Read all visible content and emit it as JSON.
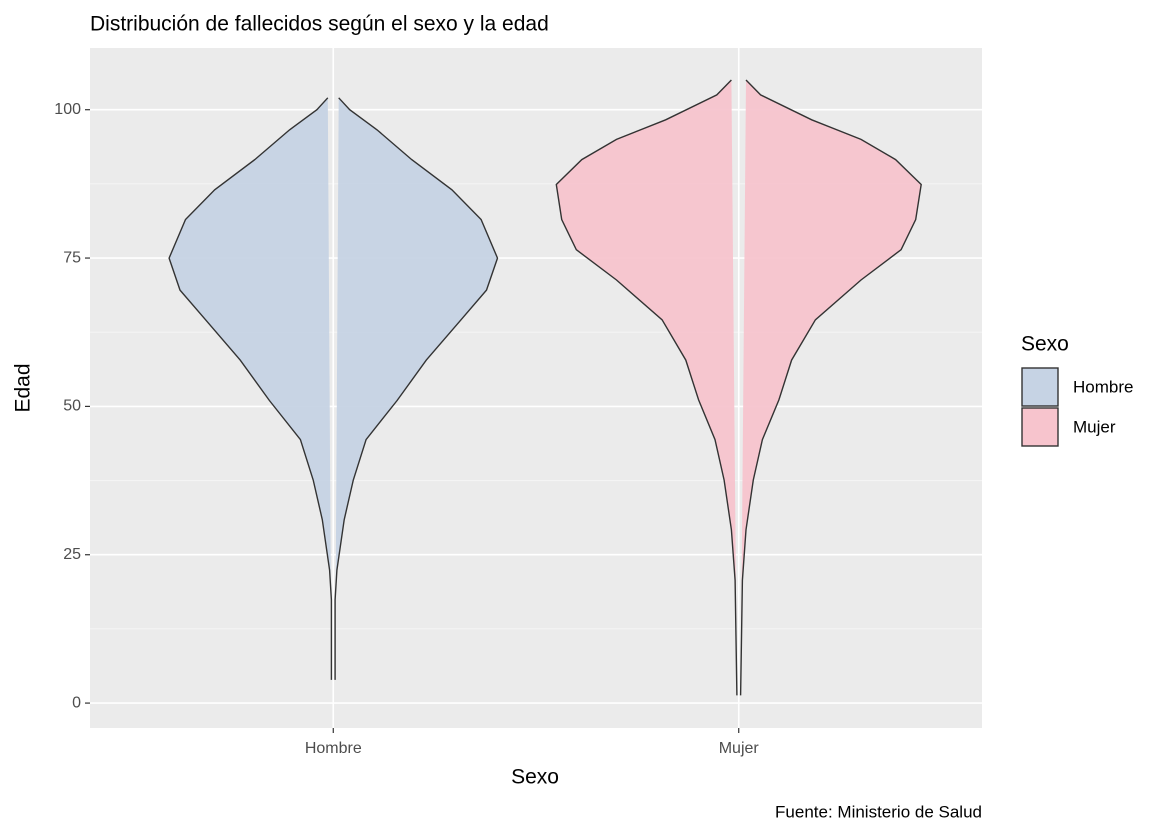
{
  "chart_data": {
    "type": "violin",
    "title": "Distribución de fallecidos según el sexo y la edad",
    "caption": "Fuente: Ministerio de Salud",
    "x_label": "Sexo",
    "y_label": "Edad",
    "legend_title": "Sexo",
    "legend_position": "right",
    "categories": [
      "Hombre",
      "Mujer"
    ],
    "ylim": [
      -4.2,
      110.4
    ],
    "yticks": [
      0,
      25,
      50,
      75,
      100
    ],
    "grid": true,
    "series": [
      {
        "name": "Hombre",
        "color": "#c6d3e4",
        "y": [
          102,
          100,
          96.6,
          91.6,
          86.5,
          81.5,
          75,
          69.6,
          64.6,
          57.8,
          51,
          44.4,
          37.6,
          30.9,
          22.4,
          17.4,
          3.9
        ],
        "density": [
          0.03,
          0.09,
          0.24,
          0.43,
          0.65,
          0.81,
          0.9,
          0.84,
          0.7,
          0.51,
          0.35,
          0.18,
          0.11,
          0.06,
          0.02,
          0.01,
          0.01
        ]
      },
      {
        "name": "Mujer",
        "color": "#f7c4cd",
        "y": [
          105,
          102.5,
          98.3,
          95,
          91.6,
          87.4,
          81.5,
          76.4,
          71.3,
          64.6,
          57.8,
          51.1,
          44.4,
          37.6,
          29.2,
          20.7,
          1.3
        ],
        "density": [
          0.04,
          0.12,
          0.4,
          0.67,
          0.86,
          1,
          0.97,
          0.89,
          0.67,
          0.42,
          0.29,
          0.22,
          0.13,
          0.08,
          0.04,
          0.02,
          0.01
        ]
      }
    ]
  }
}
